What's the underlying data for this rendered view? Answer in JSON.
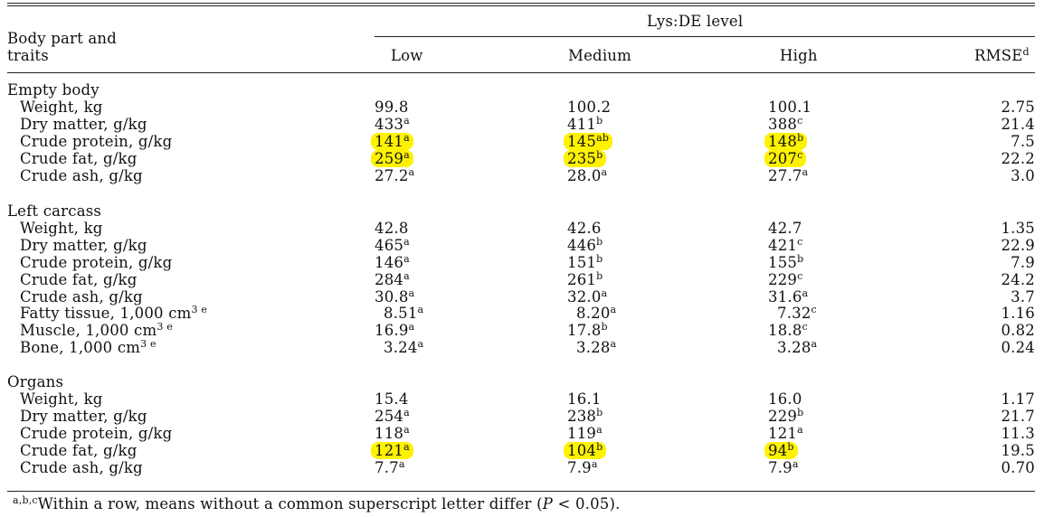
{
  "header": {
    "col0_line1": "Body part and",
    "col0_line2": "traits",
    "group": "Lys:DE level",
    "low": "Low",
    "medium": "Medium",
    "high": "High",
    "rmse": "RMSE",
    "rmse_sup": "d"
  },
  "sections": [
    {
      "title": "Empty body",
      "rows": [
        {
          "label": "Weight, kg",
          "label_sup": "",
          "low": "99.8",
          "low_sup": "",
          "medium": "100.2",
          "medium_sup": "",
          "high": "100.1",
          "high_sup": "",
          "rmse": "2.75",
          "highlight": false
        },
        {
          "label": "Dry matter, g/kg",
          "label_sup": "",
          "low": "433",
          "low_sup": "a",
          "medium": "411",
          "medium_sup": "b",
          "high": "388",
          "high_sup": "c",
          "rmse": "21.4",
          "highlight": false
        },
        {
          "label": "Crude protein, g/kg",
          "label_sup": "",
          "low": "141",
          "low_sup": "a",
          "medium": "145",
          "medium_sup": "ab",
          "high": "148",
          "high_sup": "b",
          "rmse": "7.5",
          "highlight": true
        },
        {
          "label": "Crude fat, g/kg",
          "label_sup": "",
          "low": "259",
          "low_sup": "a",
          "medium": "235",
          "medium_sup": "b",
          "high": "207",
          "high_sup": "c",
          "rmse": "22.2",
          "highlight": true
        },
        {
          "label": "Crude ash, g/kg",
          "label_sup": "",
          "low": "27.2",
          "low_sup": "a",
          "medium": "28.0",
          "medium_sup": "a",
          "high": "27.7",
          "high_sup": "a",
          "rmse": "3.0",
          "highlight": false
        }
      ]
    },
    {
      "title": "Left carcass",
      "rows": [
        {
          "label": "Weight, kg",
          "label_sup": "",
          "low": "42.8",
          "low_sup": "",
          "medium": "42.6",
          "medium_sup": "",
          "high": "42.7",
          "high_sup": "",
          "rmse": "1.35",
          "highlight": false
        },
        {
          "label": "Dry matter, g/kg",
          "label_sup": "",
          "low": "465",
          "low_sup": "a",
          "medium": "446",
          "medium_sup": "b",
          "high": "421",
          "high_sup": "c",
          "rmse": "22.9",
          "highlight": false
        },
        {
          "label": "Crude protein, g/kg",
          "label_sup": "",
          "low": "146",
          "low_sup": "a",
          "medium": "151",
          "medium_sup": "b",
          "high": "155",
          "high_sup": "b",
          "rmse": "7.9",
          "highlight": false
        },
        {
          "label": "Crude fat, g/kg",
          "label_sup": "",
          "low": "284",
          "low_sup": "a",
          "medium": "261",
          "medium_sup": "b",
          "high": "229",
          "high_sup": "c",
          "rmse": "24.2",
          "highlight": false
        },
        {
          "label": "Crude ash, g/kg",
          "label_sup": "",
          "low": "30.8",
          "low_sup": "a",
          "medium": "32.0",
          "medium_sup": "a",
          "high": "31.6",
          "high_sup": "a",
          "rmse": "3.7",
          "highlight": false
        },
        {
          "label": "Fatty tissue, 1,000 cm",
          "label_sup": "3 e",
          "low": "8.51",
          "low_sup": "a",
          "medium": "8.20",
          "medium_sup": "a",
          "high": "7.32",
          "high_sup": "c",
          "rmse": "1.16",
          "highlight": false
        },
        {
          "label": "Muscle, 1,000 cm",
          "label_sup": "3 e",
          "low": "16.9",
          "low_sup": "a",
          "medium": "17.8",
          "medium_sup": "b",
          "high": "18.8",
          "high_sup": "c",
          "rmse": "0.82",
          "highlight": false
        },
        {
          "label": "Bone, 1,000 cm",
          "label_sup": "3 e",
          "low": "3.24",
          "low_sup": "a",
          "medium": "3.28",
          "medium_sup": "a",
          "high": "3.28",
          "high_sup": "a",
          "rmse": "0.24",
          "highlight": false
        }
      ]
    },
    {
      "title": "Organs",
      "rows": [
        {
          "label": "Weight, kg",
          "label_sup": "",
          "low": "15.4",
          "low_sup": "",
          "medium": "16.1",
          "medium_sup": "",
          "high": "16.0",
          "high_sup": "",
          "rmse": "1.17",
          "highlight": false
        },
        {
          "label": "Dry matter, g/kg",
          "label_sup": "",
          "low": "254",
          "low_sup": "a",
          "medium": "238",
          "medium_sup": "b",
          "high": "229",
          "high_sup": "b",
          "rmse": "21.7",
          "highlight": false
        },
        {
          "label": "Crude protein, g/kg",
          "label_sup": "",
          "low": "118",
          "low_sup": "a",
          "medium": "119",
          "medium_sup": "a",
          "high": "121",
          "high_sup": "a",
          "rmse": "11.3",
          "highlight": false
        },
        {
          "label": "Crude fat, g/kg",
          "label_sup": "",
          "low": "121",
          "low_sup": "a",
          "medium": "104",
          "medium_sup": "b",
          "high": "94",
          "high_sup": "b",
          "rmse": "19.5",
          "highlight": true
        },
        {
          "label": "Crude ash, g/kg",
          "label_sup": "",
          "low": "7.7",
          "low_sup": "a",
          "medium": "7.9",
          "medium_sup": "a",
          "high": "7.9",
          "high_sup": "a",
          "rmse": "0.70",
          "highlight": false
        }
      ]
    }
  ],
  "footnote": {
    "sup": "a,b,c",
    "text_before": "Within a row, means without a common superscript letter differ (",
    "p": "P",
    "text_after": " < 0.05)."
  },
  "highlight_color": "#fff200"
}
